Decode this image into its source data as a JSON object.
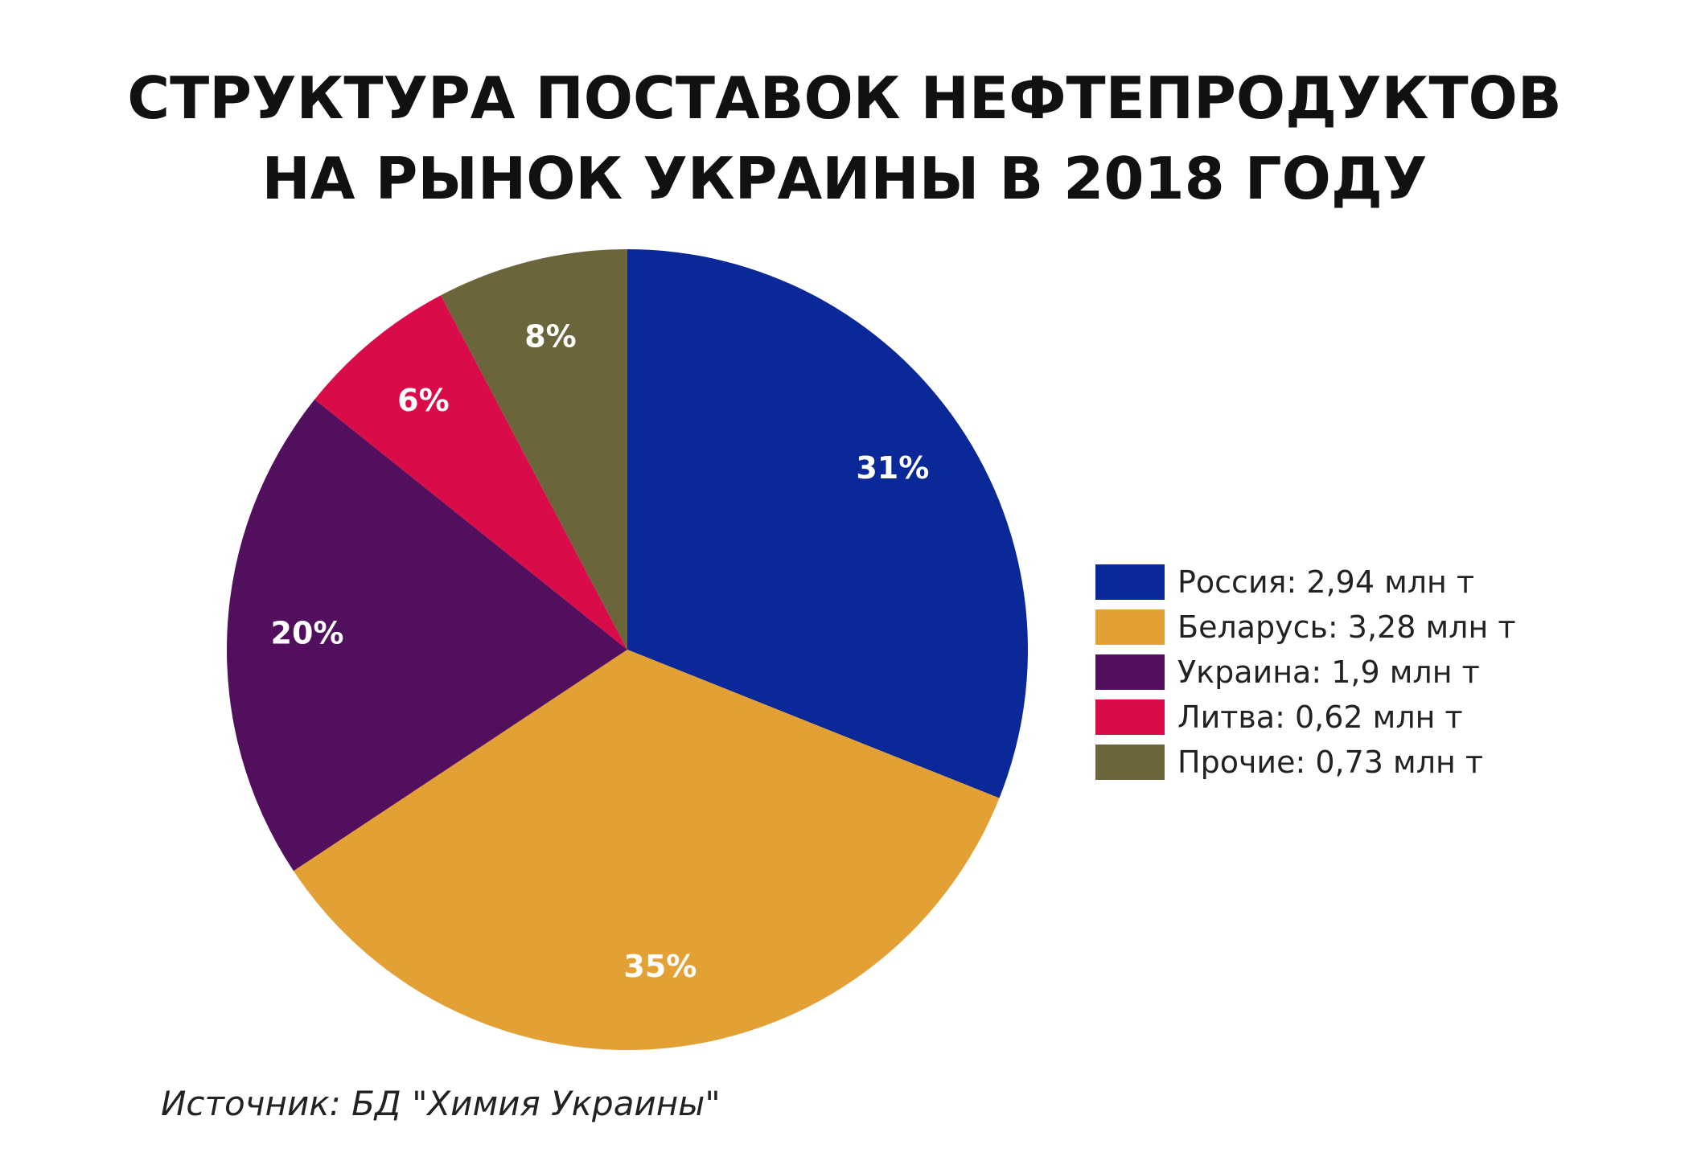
{
  "chart_data": {
    "type": "pie",
    "title_lines": [
      "СТРУКТУРА ПОСТАВОК НЕФТЕПРОДУКТОВ",
      "НА РЫНОК УКРАИНЫ В 2018 ГОДУ"
    ],
    "slices": [
      {
        "label": "Россия: 2,94 млн т",
        "value": 2.94,
        "percent_label": "31%",
        "color": "#0b2898"
      },
      {
        "label": "Беларусь: 3,28 млн т",
        "value": 3.28,
        "percent_label": "35%",
        "color": "#e3a034"
      },
      {
        "label": "Украина: 1,9 млн т",
        "value": 1.9,
        "percent_label": "20%",
        "color": "#520f5e"
      },
      {
        "label": "Литва: 0,62 млн т",
        "value": 0.62,
        "percent_label": "6%",
        "color": "#d90b49"
      },
      {
        "label": "Прочие: 0,73 млн т",
        "value": 0.73,
        "percent_label": "8%",
        "color": "#6a653b"
      }
    ],
    "legend_position": "right"
  },
  "source": "Источник: БД \"Химия Украины\""
}
